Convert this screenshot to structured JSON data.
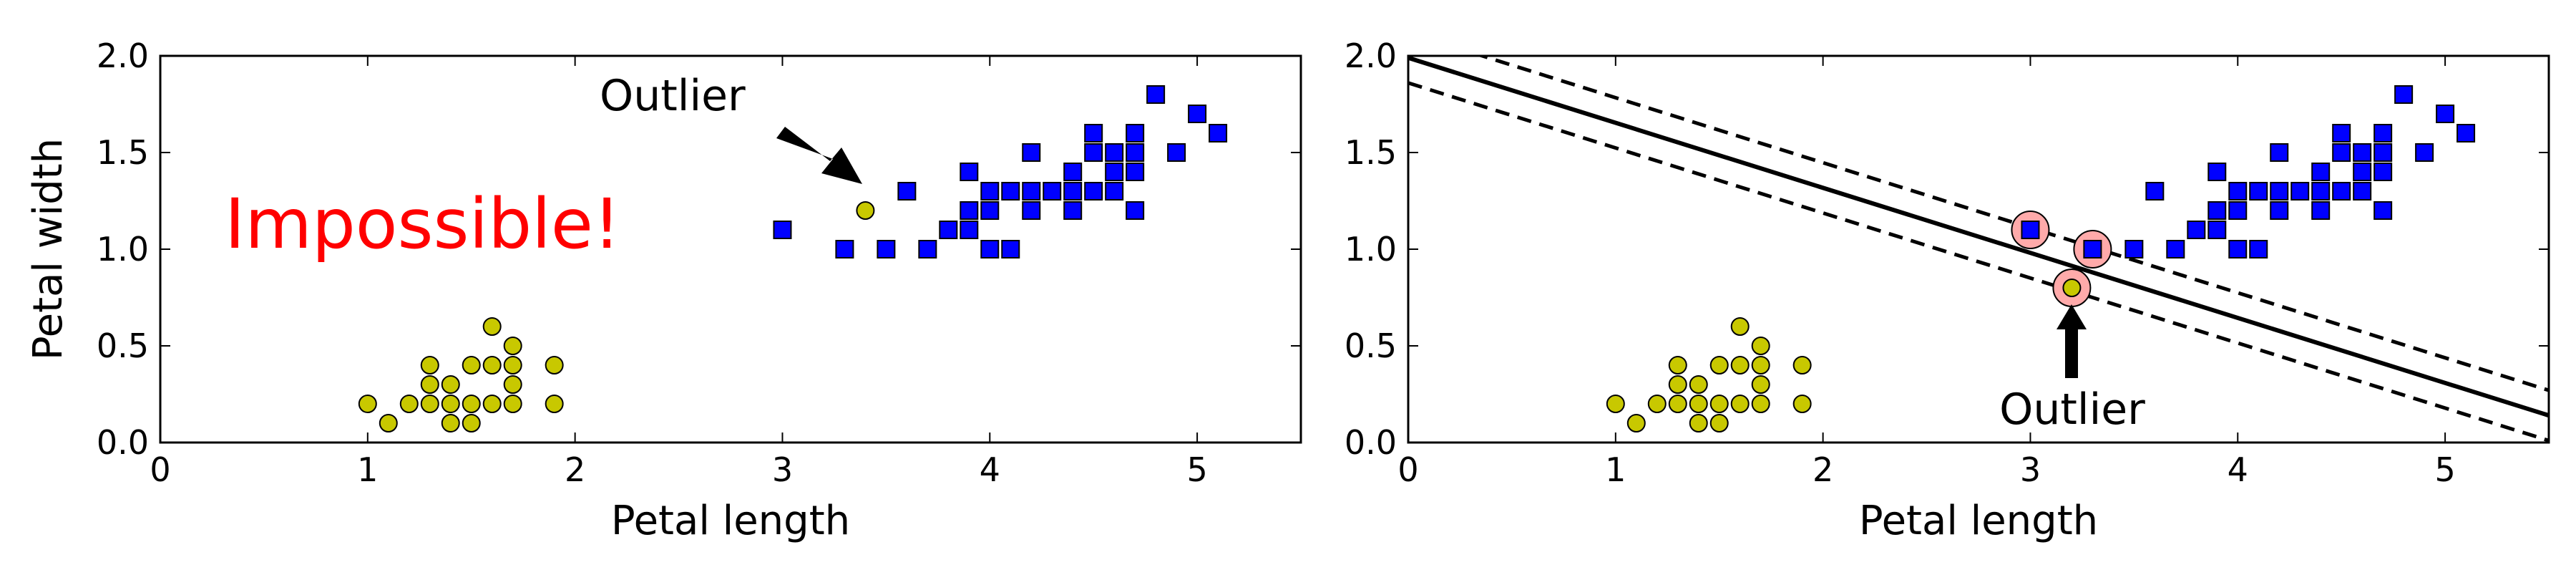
{
  "chart_data": [
    {
      "type": "scatter",
      "xlabel": "Petal length",
      "ylabel": "Petal width",
      "xlim": [
        0,
        5.5
      ],
      "ylim": [
        0,
        2.0
      ],
      "xticks": [
        "0",
        "1",
        "2",
        "3",
        "4",
        "5"
      ],
      "yticks": [
        "0.0",
        "0.5",
        "1.0",
        "1.5",
        "2.0"
      ],
      "grid": false,
      "series": [
        {
          "marker": "circle",
          "color": "#c8c800",
          "points": [
            [
              1.0,
              0.2
            ],
            [
              1.1,
              0.1
            ],
            [
              1.2,
              0.2
            ],
            [
              1.3,
              0.2
            ],
            [
              1.3,
              0.3
            ],
            [
              1.3,
              0.4
            ],
            [
              1.4,
              0.1
            ],
            [
              1.4,
              0.2
            ],
            [
              1.4,
              0.3
            ],
            [
              1.5,
              0.1
            ],
            [
              1.5,
              0.2
            ],
            [
              1.5,
              0.4
            ],
            [
              1.6,
              0.2
            ],
            [
              1.6,
              0.4
            ],
            [
              1.6,
              0.6
            ],
            [
              1.7,
              0.2
            ],
            [
              1.7,
              0.3
            ],
            [
              1.7,
              0.4
            ],
            [
              1.7,
              0.5
            ],
            [
              1.9,
              0.2
            ],
            [
              1.9,
              0.4
            ],
            [
              3.4,
              1.2
            ]
          ]
        },
        {
          "marker": "square",
          "color": "#0000ff",
          "points": [
            [
              3.0,
              1.1
            ],
            [
              3.3,
              1.0
            ],
            [
              3.5,
              1.0
            ],
            [
              3.6,
              1.3
            ],
            [
              3.7,
              1.0
            ],
            [
              3.8,
              1.1
            ],
            [
              3.9,
              1.1
            ],
            [
              3.9,
              1.2
            ],
            [
              3.9,
              1.4
            ],
            [
              4.0,
              1.0
            ],
            [
              4.0,
              1.2
            ],
            [
              4.0,
              1.3
            ],
            [
              4.1,
              1.0
            ],
            [
              4.1,
              1.3
            ],
            [
              4.2,
              1.2
            ],
            [
              4.2,
              1.3
            ],
            [
              4.2,
              1.5
            ],
            [
              4.3,
              1.3
            ],
            [
              4.4,
              1.2
            ],
            [
              4.4,
              1.3
            ],
            [
              4.4,
              1.4
            ],
            [
              4.5,
              1.3
            ],
            [
              4.5,
              1.5
            ],
            [
              4.5,
              1.6
            ],
            [
              4.6,
              1.3
            ],
            [
              4.6,
              1.4
            ],
            [
              4.6,
              1.5
            ],
            [
              4.7,
              1.2
            ],
            [
              4.7,
              1.4
            ],
            [
              4.7,
              1.5
            ],
            [
              4.7,
              1.6
            ],
            [
              4.8,
              1.8
            ],
            [
              4.9,
              1.5
            ],
            [
              5.0,
              1.7
            ],
            [
              5.1,
              1.6
            ]
          ]
        }
      ],
      "annotations": [
        {
          "text": "Outlier",
          "arrow_to": [
            3.4,
            1.2
          ]
        },
        {
          "text": "Impossible!",
          "color": "#ff0000"
        }
      ]
    },
    {
      "type": "scatter",
      "xlabel": "Petal length",
      "ylabel": "",
      "xlim": [
        0,
        5.5
      ],
      "ylim": [
        0,
        2.0
      ],
      "xticks": [
        "0",
        "1",
        "2",
        "3",
        "4",
        "5"
      ],
      "yticks": [
        "0.0",
        "0.5",
        "1.0",
        "1.5",
        "2.0"
      ],
      "grid": false,
      "series": [
        {
          "marker": "circle",
          "color": "#c8c800",
          "points": [
            [
              1.0,
              0.2
            ],
            [
              1.1,
              0.1
            ],
            [
              1.2,
              0.2
            ],
            [
              1.3,
              0.2
            ],
            [
              1.3,
              0.3
            ],
            [
              1.3,
              0.4
            ],
            [
              1.4,
              0.1
            ],
            [
              1.4,
              0.2
            ],
            [
              1.4,
              0.3
            ],
            [
              1.5,
              0.1
            ],
            [
              1.5,
              0.2
            ],
            [
              1.5,
              0.4
            ],
            [
              1.6,
              0.2
            ],
            [
              1.6,
              0.4
            ],
            [
              1.6,
              0.6
            ],
            [
              1.7,
              0.2
            ],
            [
              1.7,
              0.3
            ],
            [
              1.7,
              0.4
            ],
            [
              1.7,
              0.5
            ],
            [
              1.9,
              0.2
            ],
            [
              1.9,
              0.4
            ],
            [
              3.2,
              0.8
            ]
          ]
        },
        {
          "marker": "square",
          "color": "#0000ff",
          "points": [
            [
              3.0,
              1.1
            ],
            [
              3.3,
              1.0
            ],
            [
              3.5,
              1.0
            ],
            [
              3.6,
              1.3
            ],
            [
              3.7,
              1.0
            ],
            [
              3.8,
              1.1
            ],
            [
              3.9,
              1.1
            ],
            [
              3.9,
              1.2
            ],
            [
              3.9,
              1.4
            ],
            [
              4.0,
              1.0
            ],
            [
              4.0,
              1.2
            ],
            [
              4.0,
              1.3
            ],
            [
              4.1,
              1.0
            ],
            [
              4.1,
              1.3
            ],
            [
              4.2,
              1.2
            ],
            [
              4.2,
              1.3
            ],
            [
              4.2,
              1.5
            ],
            [
              4.3,
              1.3
            ],
            [
              4.4,
              1.2
            ],
            [
              4.4,
              1.3
            ],
            [
              4.4,
              1.4
            ],
            [
              4.5,
              1.3
            ],
            [
              4.5,
              1.5
            ],
            [
              4.5,
              1.6
            ],
            [
              4.6,
              1.3
            ],
            [
              4.6,
              1.4
            ],
            [
              4.6,
              1.5
            ],
            [
              4.7,
              1.2
            ],
            [
              4.7,
              1.4
            ],
            [
              4.7,
              1.5
            ],
            [
              4.7,
              1.6
            ],
            [
              4.8,
              1.8
            ],
            [
              4.9,
              1.5
            ],
            [
              5.0,
              1.7
            ],
            [
              5.1,
              1.6
            ]
          ]
        }
      ],
      "lines": [
        {
          "style": "solid",
          "points": [
            [
              0,
              1.99
            ],
            [
              5.5,
              0.14
            ]
          ]
        },
        {
          "style": "dashed",
          "points": [
            [
              0,
              2.12
            ],
            [
              5.5,
              0.27
            ]
          ]
        },
        {
          "style": "dashed",
          "points": [
            [
              0,
              1.86
            ],
            [
              5.5,
              0.01
            ]
          ]
        }
      ],
      "support_vectors": {
        "color": "#ffaaaa",
        "points": [
          [
            3.0,
            1.1
          ],
          [
            3.3,
            1.0
          ],
          [
            3.2,
            0.8
          ]
        ]
      },
      "annotations": [
        {
          "text": "Outlier",
          "arrow_to": [
            3.2,
            0.8
          ]
        }
      ]
    }
  ]
}
